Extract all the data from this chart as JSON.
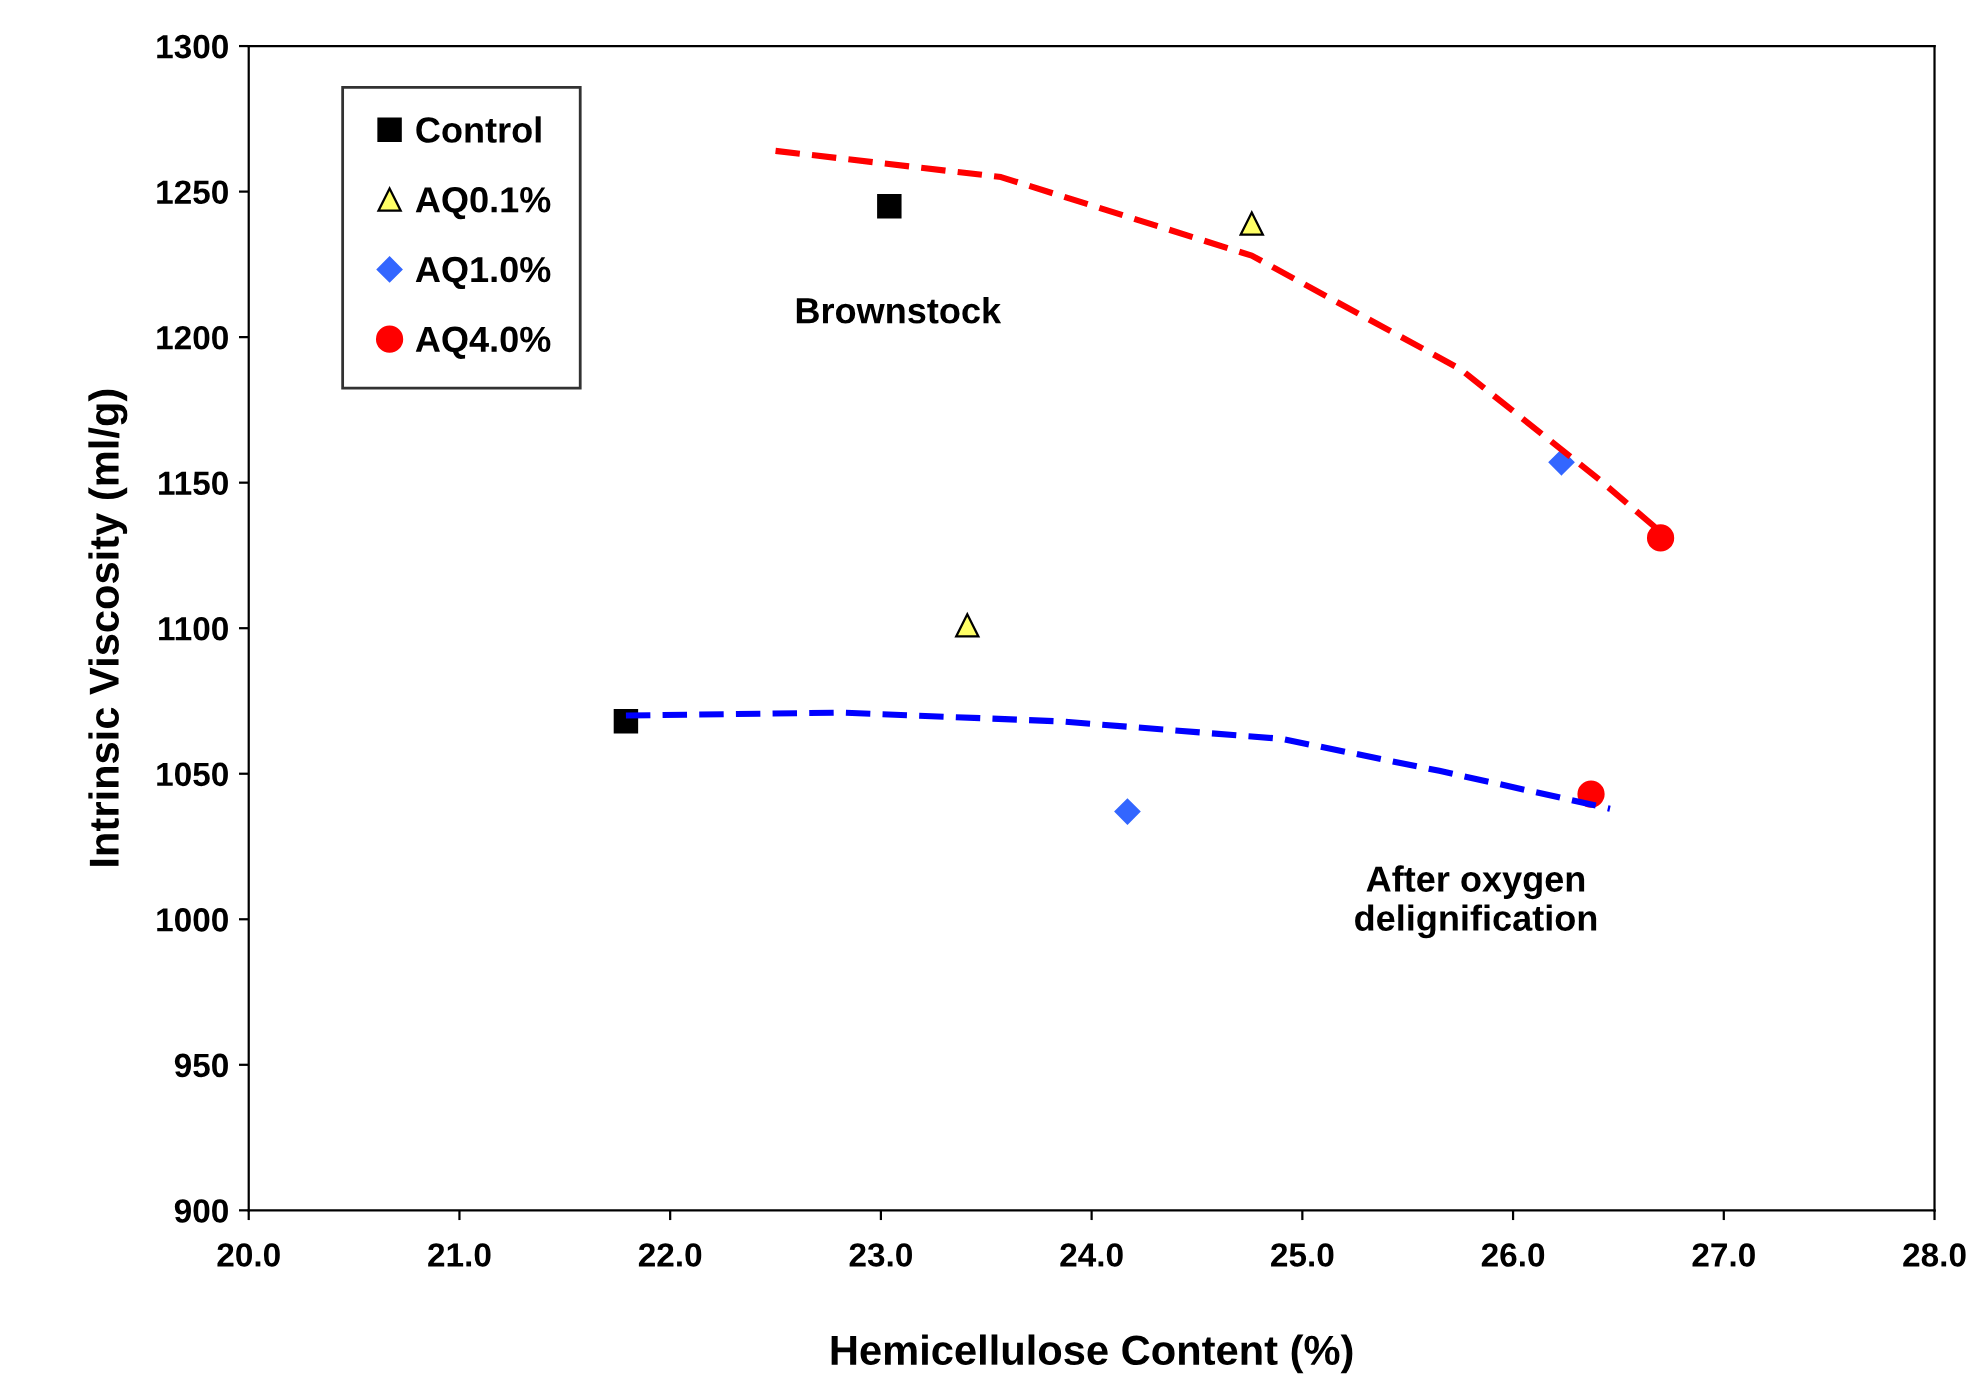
{
  "chart_data": {
    "type": "scatter",
    "xlabel": "Hemicellulose Content (%)",
    "ylabel": "Intrinsic Viscosity (ml/g)",
    "xlim": [
      20.0,
      28.0
    ],
    "ylim": [
      900,
      1300
    ],
    "xticks": [
      {
        "value": 20,
        "label": "20.0"
      },
      {
        "value": 21,
        "label": "21.0"
      },
      {
        "value": 22,
        "label": "22.0"
      },
      {
        "value": 23,
        "label": "23.0"
      },
      {
        "value": 24,
        "label": "24.0"
      },
      {
        "value": 25,
        "label": "25.0"
      },
      {
        "value": 26,
        "label": "26.0"
      },
      {
        "value": 27,
        "label": "27.0"
      },
      {
        "value": 28,
        "label": "28.0"
      }
    ],
    "yticks": [
      900,
      950,
      1000,
      1050,
      1100,
      1150,
      1200,
      1250,
      1300
    ],
    "grid": false,
    "legend": "top left",
    "series": [
      {
        "name": "Control",
        "color": "#000000",
        "marker": "square",
        "x": [
          23.04,
          21.79
        ],
        "values": [
          1245,
          1068
        ]
      },
      {
        "name": "AQ0.1%",
        "color": "#ffff66",
        "marker": "triangle",
        "x": [
          24.76,
          23.41
        ],
        "values": [
          1239,
          1101
        ]
      },
      {
        "name": "AQ1.0%",
        "color": "#3366ff",
        "marker": "diamond",
        "x": [
          26.23,
          24.17
        ],
        "values": [
          1157,
          1037
        ]
      },
      {
        "name": "AQ4.0%",
        "color": "#ff0000",
        "marker": "circle",
        "x": [
          26.7,
          26.37
        ],
        "values": [
          1131,
          1043
        ]
      },
      {
        "type": "line",
        "color": "#ff0000",
        "line_style": "dashed",
        "marker": "none",
        "x": [
          22.5,
          23.57,
          24.76,
          25.75,
          26.41,
          26.75
        ],
        "values": [
          1264,
          1255,
          1228,
          1189,
          1151,
          1130
        ]
      },
      {
        "type": "line",
        "color": "#0000ff",
        "line_style": "dashed",
        "marker": "none",
        "x": [
          21.79,
          22.81,
          23.85,
          24.9,
          25.65,
          26.46
        ],
        "values": [
          1070,
          1071,
          1068,
          1062,
          1051,
          1038
        ]
      }
    ],
    "annotations": [
      "Brownstock",
      "After oxygen\ndelignification"
    ]
  }
}
